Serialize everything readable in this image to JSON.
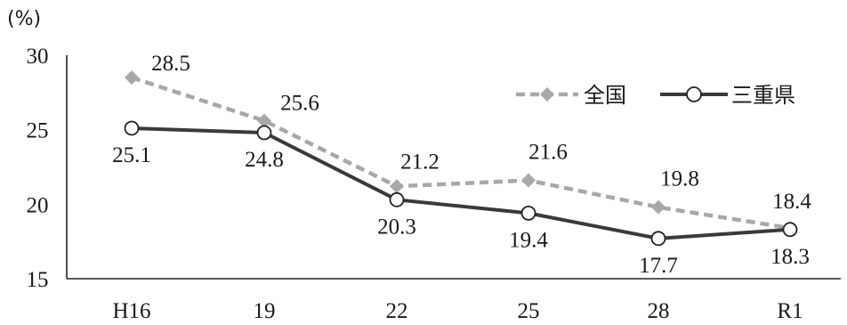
{
  "chart_data": {
    "type": "line",
    "unit_label": "(%)",
    "categories": [
      "H16",
      "19",
      "22",
      "25",
      "28",
      "R1"
    ],
    "ylim": [
      15,
      30
    ],
    "yticks": [
      "15",
      "20",
      "25",
      "30"
    ],
    "grid": false,
    "legend_position": "top-right",
    "series": [
      {
        "name": "全国",
        "values": [
          28.5,
          25.6,
          21.2,
          21.6,
          19.8,
          18.4
        ],
        "labels": [
          "28.5",
          "25.6",
          "21.2",
          "21.6",
          "19.8",
          "18.4"
        ],
        "color": "#a8a8a8",
        "style": "dashed",
        "marker": "diamond"
      },
      {
        "name": "三重県",
        "values": [
          25.1,
          24.8,
          20.3,
          19.4,
          17.7,
          18.3
        ],
        "labels": [
          "25.1",
          "24.8",
          "20.3",
          "19.4",
          "17.7",
          "18.3"
        ],
        "color": "#3a3a3a",
        "style": "solid",
        "marker": "circle"
      }
    ]
  }
}
